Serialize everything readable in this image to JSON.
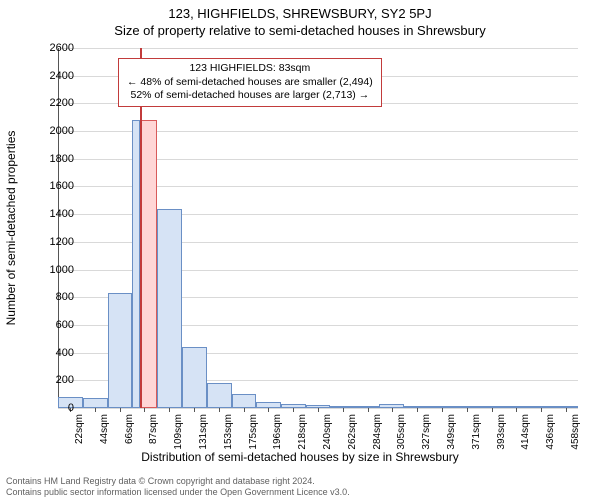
{
  "title_main": "123, HIGHFIELDS, SHREWSBURY, SY2 5PJ",
  "title_sub": "Size of property relative to semi-detached houses in Shrewsbury",
  "y_axis_label": "Number of semi-detached properties",
  "x_axis_label": "Distribution of semi-detached houses by size in Shrewsbury",
  "chart": {
    "type": "histogram",
    "ylim": [
      0,
      2600
    ],
    "ytick_step": 200,
    "y_tick_values": [
      0,
      200,
      400,
      600,
      800,
      1000,
      1200,
      1400,
      1600,
      1800,
      2000,
      2200,
      2400,
      2600
    ],
    "x_tick_labels": [
      "22sqm",
      "44sqm",
      "66sqm",
      "87sqm",
      "109sqm",
      "131sqm",
      "153sqm",
      "175sqm",
      "196sqm",
      "218sqm",
      "240sqm",
      "262sqm",
      "284sqm",
      "305sqm",
      "327sqm",
      "349sqm",
      "371sqm",
      "393sqm",
      "414sqm",
      "436sqm",
      "458sqm"
    ],
    "x_tick_positions": [
      22,
      44,
      66,
      87,
      109,
      131,
      153,
      175,
      196,
      218,
      240,
      262,
      284,
      305,
      327,
      349,
      371,
      393,
      414,
      436,
      458
    ],
    "xlim": [
      11,
      469
    ],
    "bar_fill": "#d6e3f5",
    "bar_border": "#6a8fc5",
    "highlight_fill": "#ffd6d6",
    "highlight_border": "#d85a5a",
    "grid_color": "#d9d9d9",
    "background_color": "#ffffff",
    "marker_color": "#c23b3b",
    "anno_border": "#c23b3b",
    "bars": [
      {
        "x0": 11,
        "x1": 33,
        "y": 80
      },
      {
        "x0": 33,
        "x1": 55,
        "y": 70
      },
      {
        "x0": 55,
        "x1": 76,
        "y": 830
      },
      {
        "x0": 76,
        "x1": 83,
        "y": 2080
      },
      {
        "x0": 83,
        "x1": 98,
        "y": 2080,
        "highlight": true
      },
      {
        "x0": 98,
        "x1": 120,
        "y": 1440
      },
      {
        "x0": 120,
        "x1": 142,
        "y": 440
      },
      {
        "x0": 142,
        "x1": 164,
        "y": 180
      },
      {
        "x0": 164,
        "x1": 185,
        "y": 100
      },
      {
        "x0": 185,
        "x1": 207,
        "y": 45
      },
      {
        "x0": 207,
        "x1": 229,
        "y": 30
      },
      {
        "x0": 229,
        "x1": 251,
        "y": 20
      },
      {
        "x0": 251,
        "x1": 273,
        "y": 15
      },
      {
        "x0": 273,
        "x1": 294,
        "y": 12
      },
      {
        "x0": 294,
        "x1": 316,
        "y": 30
      },
      {
        "x0": 316,
        "x1": 338,
        "y": 5
      },
      {
        "x0": 338,
        "x1": 360,
        "y": 3
      },
      {
        "x0": 360,
        "x1": 382,
        "y": 2
      },
      {
        "x0": 382,
        "x1": 403,
        "y": 2
      },
      {
        "x0": 403,
        "x1": 425,
        "y": 2
      },
      {
        "x0": 425,
        "x1": 447,
        "y": 2
      },
      {
        "x0": 447,
        "x1": 469,
        "y": 2
      }
    ],
    "marker_x": 83,
    "annotation": {
      "line1": "123 HIGHFIELDS: 83sqm",
      "line2": "← 48% of semi-detached houses are smaller (2,494)",
      "line3": "52% of semi-detached houses are larger (2,713) →"
    }
  },
  "footer": {
    "line1": "Contains HM Land Registry data © Crown copyright and database right 2024.",
    "line2": "Contains public sector information licensed under the Open Government Licence v3.0."
  }
}
